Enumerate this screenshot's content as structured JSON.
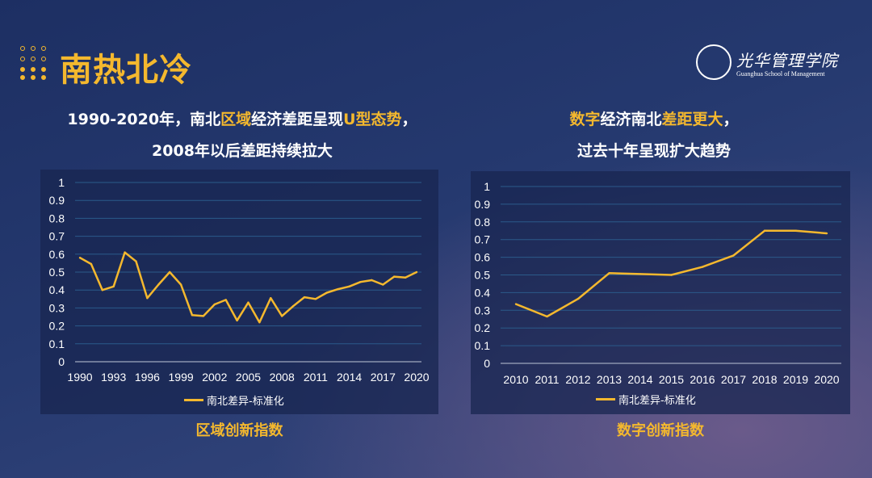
{
  "header": {
    "title": "南热北冷",
    "logo_text_cn": "光华管理学院",
    "logo_text_en": "Guanghua School of Management"
  },
  "left_heading": {
    "line1_parts": [
      "1990-2020年，南北",
      "区域",
      "经济差距呈现",
      "U型态势",
      "，"
    ],
    "line2": "2008年以后差距持续拉大"
  },
  "right_heading": {
    "line1_parts": [
      "数字",
      "经济南北",
      "差距更大",
      "，"
    ],
    "line2": "过去十年呈现扩大趋势"
  },
  "colors": {
    "accent": "#f4b82e",
    "background": "#25396f"
  },
  "chart_data": [
    {
      "type": "line",
      "caption": "区域创新指数",
      "x": [
        1990,
        1991,
        1992,
        1993,
        1994,
        1995,
        1996,
        1997,
        1998,
        1999,
        2000,
        2001,
        2002,
        2003,
        2004,
        2005,
        2006,
        2007,
        2008,
        2009,
        2010,
        2011,
        2012,
        2013,
        2014,
        2015,
        2016,
        2017,
        2018,
        2019,
        2020
      ],
      "x_tick_labels": [
        "1990",
        "1993",
        "1996",
        "1999",
        "2002",
        "2005",
        "2008",
        "2011",
        "2014",
        "2017",
        "2020"
      ],
      "series": [
        {
          "name": "南北差异-标准化",
          "color": "#f4b82e",
          "values": [
            0.58,
            0.545,
            0.4,
            0.42,
            0.61,
            0.56,
            0.355,
            0.43,
            0.5,
            0.43,
            0.26,
            0.255,
            0.32,
            0.345,
            0.23,
            0.33,
            0.22,
            0.355,
            0.255,
            0.31,
            0.36,
            0.35,
            0.385,
            0.405,
            0.42,
            0.445,
            0.455,
            0.43,
            0.475,
            0.47,
            0.5
          ]
        }
      ],
      "y_tick_labels": [
        "0",
        "0.1",
        "0.2",
        "0.3",
        "0.4",
        "0.5",
        "0.6",
        "0.7",
        "0.8",
        "0.9",
        "1"
      ],
      "ylim": [
        0,
        1
      ],
      "grid": true,
      "legend": "bottom"
    },
    {
      "type": "line",
      "caption": "数字创新指数",
      "x": [
        2010,
        2011,
        2012,
        2013,
        2014,
        2015,
        2016,
        2017,
        2018,
        2019,
        2020
      ],
      "x_tick_labels": [
        "2010",
        "2011",
        "2012",
        "2013",
        "2014",
        "2015",
        "2016",
        "2017",
        "2018",
        "2019",
        "2020"
      ],
      "series": [
        {
          "name": "南北差异-标准化",
          "color": "#f4b82e",
          "values": [
            0.335,
            0.265,
            0.365,
            0.51,
            0.505,
            0.5,
            0.545,
            0.61,
            0.75,
            0.75,
            0.735
          ]
        }
      ],
      "y_tick_labels": [
        "0",
        "0.1",
        "0.2",
        "0.3",
        "0.4",
        "0.5",
        "0.6",
        "0.7",
        "0.8",
        "0.9",
        "1"
      ],
      "ylim": [
        0,
        1
      ],
      "grid": true,
      "legend": "bottom"
    }
  ]
}
